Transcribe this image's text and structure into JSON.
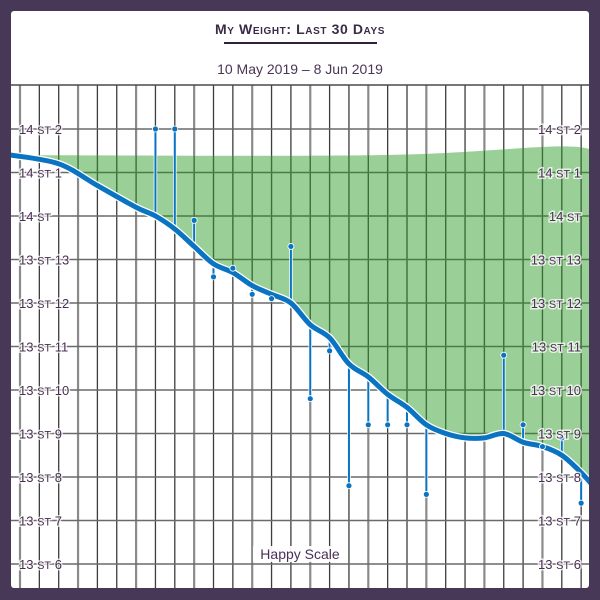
{
  "header": {
    "title": "My Weight: Last 30 Days",
    "date_range": "10 May 2019 – 8 Jun 2019"
  },
  "branding": "Happy Scale",
  "colors": {
    "background": "#473857",
    "trend_line": "#0a74c2",
    "goal_band": "#9ad097",
    "grid": "#444444",
    "label": "#4a2f52"
  },
  "chart_data": {
    "type": "line",
    "title": "My Weight: Last 30 Days",
    "subtitle": "10 May 2019 – 8 Jun 2019",
    "xlabel": "",
    "ylabel": "",
    "x_range": [
      "10 May 2019",
      "8 Jun 2019"
    ],
    "y_unit": "stone/pounds",
    "y_ticks": [
      "14 st 2",
      "14 st 1",
      "14 st",
      "13 st 13",
      "13 st 12",
      "13 st 11",
      "13 st 10",
      "13 st 9",
      "13 st 8",
      "13 st 7",
      "13 st 6"
    ],
    "y_ticks_lbs": [
      198,
      197,
      196,
      195,
      194,
      193,
      192,
      191,
      190,
      189,
      188
    ],
    "ylim_lbs": [
      187.5,
      199
    ],
    "grid": true,
    "series": [
      {
        "name": "Daily weigh-ins",
        "style": "stem",
        "points": [
          {
            "day": 7,
            "lbs": 198.0
          },
          {
            "day": 8,
            "lbs": 198.0
          },
          {
            "day": 9,
            "lbs": 195.9
          },
          {
            "day": 10,
            "lbs": 194.6
          },
          {
            "day": 11,
            "lbs": 194.8
          },
          {
            "day": 12,
            "lbs": 194.2
          },
          {
            "day": 13,
            "lbs": 194.1
          },
          {
            "day": 14,
            "lbs": 195.3
          },
          {
            "day": 15,
            "lbs": 191.8
          },
          {
            "day": 16,
            "lbs": 192.9
          },
          {
            "day": 17,
            "lbs": 189.8
          },
          {
            "day": 18,
            "lbs": 191.2
          },
          {
            "day": 19,
            "lbs": 191.2
          },
          {
            "day": 20,
            "lbs": 191.2
          },
          {
            "day": 21,
            "lbs": 189.6
          },
          {
            "day": 25,
            "lbs": 192.8
          },
          {
            "day": 26,
            "lbs": 191.2
          },
          {
            "day": 27,
            "lbs": 190.7
          },
          {
            "day": 28,
            "lbs": 190.9
          },
          {
            "day": 29,
            "lbs": 189.4
          },
          {
            "day": 30,
            "lbs": 188.5
          }
        ]
      },
      {
        "name": "Moving average trend",
        "style": "line",
        "points": [
          {
            "day": 0.5,
            "lbs": 197.4
          },
          {
            "day": 2,
            "lbs": 197.2
          },
          {
            "day": 4,
            "lbs": 196.7
          },
          {
            "day": 6,
            "lbs": 196.2
          },
          {
            "day": 7,
            "lbs": 196.0
          },
          {
            "day": 8,
            "lbs": 195.7
          },
          {
            "day": 9,
            "lbs": 195.3
          },
          {
            "day": 10,
            "lbs": 194.9
          },
          {
            "day": 11,
            "lbs": 194.7
          },
          {
            "day": 12,
            "lbs": 194.4
          },
          {
            "day": 13,
            "lbs": 194.2
          },
          {
            "day": 14,
            "lbs": 194.0
          },
          {
            "day": 15,
            "lbs": 193.5
          },
          {
            "day": 16,
            "lbs": 193.2
          },
          {
            "day": 17,
            "lbs": 192.6
          },
          {
            "day": 18,
            "lbs": 192.3
          },
          {
            "day": 19,
            "lbs": 191.9
          },
          {
            "day": 20,
            "lbs": 191.6
          },
          {
            "day": 21,
            "lbs": 191.2
          },
          {
            "day": 22,
            "lbs": 191.0
          },
          {
            "day": 23,
            "lbs": 190.9
          },
          {
            "day": 24,
            "lbs": 190.9
          },
          {
            "day": 25,
            "lbs": 191.0
          },
          {
            "day": 26,
            "lbs": 190.8
          },
          {
            "day": 27,
            "lbs": 190.7
          },
          {
            "day": 28,
            "lbs": 190.5
          },
          {
            "day": 29,
            "lbs": 190.1
          },
          {
            "day": 30,
            "lbs": 189.6
          }
        ]
      },
      {
        "name": "Goal band upper bound",
        "style": "area",
        "points": [
          {
            "day": 0.5,
            "lbs": 197.4
          },
          {
            "day": 18.5,
            "lbs": 197.4
          },
          {
            "day": 28,
            "lbs": 197.6
          },
          {
            "day": 30,
            "lbs": 197.4
          }
        ]
      }
    ]
  }
}
